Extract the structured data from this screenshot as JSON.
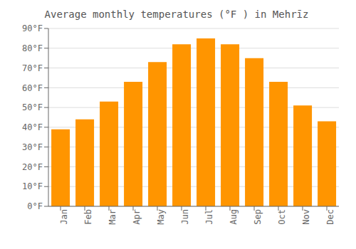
{
  "chart_data": {
    "type": "bar",
    "title": "Average monthly temperatures (°F ) in Mehrīz",
    "categories": [
      "Jan",
      "Feb",
      "Mar",
      "Apr",
      "May",
      "Jun",
      "Jul",
      "Aug",
      "Sep",
      "Oct",
      "Nov",
      "Dec"
    ],
    "values": [
      39,
      44,
      53,
      63,
      73,
      82,
      85,
      82,
      75,
      63,
      51,
      43
    ],
    "color": "#FF9500",
    "ylim": [
      0,
      90
    ],
    "yticks": [
      {
        "value": 0,
        "label": "0°F"
      },
      {
        "value": 10,
        "label": "10°F"
      },
      {
        "value": 20,
        "label": "20°F"
      },
      {
        "value": 30,
        "label": "30°F"
      },
      {
        "value": 40,
        "label": "40°F"
      },
      {
        "value": 50,
        "label": "50°F"
      },
      {
        "value": 60,
        "label": "60°F"
      },
      {
        "value": 70,
        "label": "70°F"
      },
      {
        "value": 80,
        "label": "80°F"
      },
      {
        "value": 90,
        "label": "90°F"
      }
    ],
    "grid": true
  }
}
